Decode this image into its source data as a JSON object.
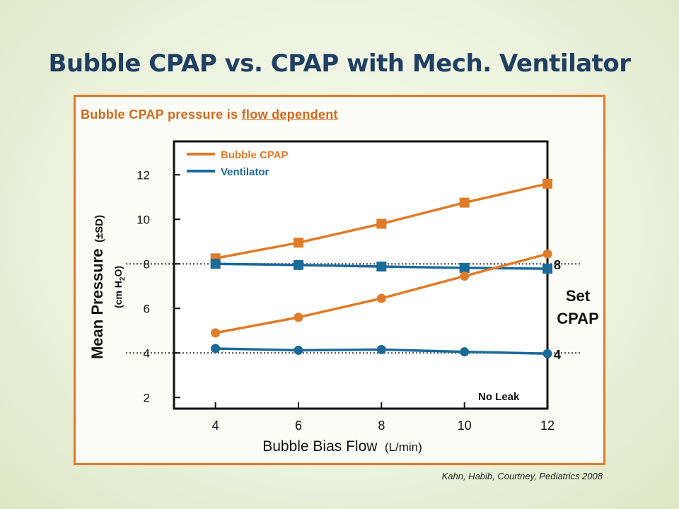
{
  "slide": {
    "title": "Bubble CPAP vs. CPAP with Mech. Ventilator",
    "subtitle_prefix": "Bubble CPAP pressure is ",
    "subtitle_emphasis": "flow dependent",
    "citation": "Kahn, Habib, Courtney, Pediatrics 2008"
  },
  "chart_data": {
    "type": "line",
    "ylabel_main": "Mean Pressure",
    "ylabel_sd": "(±SD)",
    "ylabel_unit_pre": "(cm H",
    "ylabel_unit_sub": "2",
    "ylabel_unit_post": "O)",
    "xlabel_main": "Bubble Bias Flow",
    "xlabel_unit": "(L/min)",
    "x": [
      4,
      6,
      8,
      10,
      12
    ],
    "xlim": [
      3,
      12
    ],
    "ylim": [
      1.5,
      13.5
    ],
    "xticks": [
      "4",
      "6",
      "8",
      "10",
      "12"
    ],
    "yticks": [
      "2",
      "4",
      "6",
      "8",
      "10",
      "12"
    ],
    "legend": {
      "placement": "top-left"
    },
    "series": [
      {
        "name": "Bubble CPAP",
        "color": "#e07b28",
        "marker": "square",
        "set_cpap": 8,
        "values": [
          8.25,
          8.95,
          9.8,
          10.75,
          11.6
        ]
      },
      {
        "name": "Ventilator",
        "color": "#1a6a9a",
        "marker": "square",
        "set_cpap": 8,
        "values": [
          8.0,
          7.95,
          7.88,
          7.82,
          7.78
        ]
      },
      {
        "name": "Bubble CPAP",
        "color": "#e07b28",
        "marker": "circle",
        "set_cpap": 4,
        "values": [
          4.9,
          5.6,
          6.45,
          7.45,
          8.45
        ]
      },
      {
        "name": "Ventilator",
        "color": "#1a6a9a",
        "marker": "circle",
        "set_cpap": 4,
        "values": [
          4.2,
          4.12,
          4.15,
          4.05,
          3.97
        ]
      }
    ],
    "reference_lines": [
      {
        "label": "8",
        "value": 8
      },
      {
        "label": "4",
        "value": 4
      }
    ],
    "reference_title_line1": "Set",
    "reference_title_line2": "CPAP",
    "annotation": "No Leak"
  }
}
